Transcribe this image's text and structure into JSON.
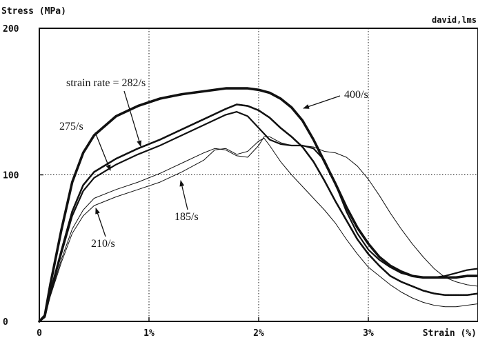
{
  "chart_data": {
    "type": "line",
    "title": "",
    "ylabel": "Stress (MPa)",
    "xlabel": "Strain (%)",
    "corner_label": "david,lms",
    "xlim": [
      0,
      4
    ],
    "ylim": [
      0,
      200
    ],
    "x_ticks": [
      {
        "value": 0,
        "label": "0"
      },
      {
        "value": 1,
        "label": "1%"
      },
      {
        "value": 2,
        "label": "2%"
      },
      {
        "value": 3,
        "label": "3%"
      }
    ],
    "y_ticks": [
      {
        "value": 0,
        "label": "0"
      },
      {
        "value": 100,
        "label": "100"
      },
      {
        "value": 200,
        "label": "200"
      }
    ],
    "reference_line_y": 100,
    "series": [
      {
        "name": "400/s",
        "x": [
          0,
          0.05,
          0.1,
          0.2,
          0.3,
          0.4,
          0.5,
          0.7,
          0.9,
          1.1,
          1.3,
          1.5,
          1.7,
          1.8,
          1.9,
          2.0,
          2.1,
          2.2,
          2.3,
          2.4,
          2.5,
          2.6,
          2.7,
          2.8,
          2.9,
          3.0,
          3.1,
          3.2,
          3.3,
          3.4,
          3.5,
          3.6,
          3.7,
          3.8,
          3.9,
          4.0
        ],
        "y": [
          0,
          4,
          25,
          62,
          95,
          115,
          127,
          140,
          147,
          152,
          155,
          157,
          159,
          159,
          159,
          158,
          156,
          152,
          146,
          137,
          124,
          109,
          94,
          78,
          64,
          53,
          44,
          38,
          34,
          31,
          30,
          30,
          30,
          30,
          31,
          31
        ]
      },
      {
        "name": "282/s",
        "x": [
          0,
          0.05,
          0.1,
          0.2,
          0.3,
          0.4,
          0.5,
          0.7,
          0.9,
          1.1,
          1.3,
          1.5,
          1.7,
          1.8,
          1.9,
          2.0,
          2.1,
          2.2,
          2.3,
          2.4,
          2.5,
          2.6,
          2.7,
          2.8,
          2.9,
          3.0,
          3.1,
          3.2,
          3.3,
          3.4,
          3.5,
          3.6,
          3.7,
          3.8,
          3.9,
          4.0
        ],
        "y": [
          0,
          3,
          20,
          48,
          75,
          93,
          102,
          111,
          118,
          124,
          131,
          138,
          145,
          148,
          147,
          144,
          139,
          132,
          126,
          119,
          109,
          96,
          82,
          69,
          56,
          46,
          38,
          31,
          27,
          24,
          21,
          19,
          18,
          18,
          18,
          19
        ]
      },
      {
        "name": "275/s",
        "x": [
          0,
          0.05,
          0.1,
          0.2,
          0.3,
          0.4,
          0.5,
          0.7,
          0.9,
          1.1,
          1.3,
          1.5,
          1.7,
          1.8,
          1.9,
          2.0,
          2.1,
          2.2,
          2.3,
          2.4,
          2.5,
          2.6,
          2.7,
          2.8,
          2.9,
          3.0,
          3.1,
          3.2,
          3.3,
          3.4,
          3.5,
          3.6,
          3.7,
          3.8,
          3.9,
          4.0
        ],
        "y": [
          0,
          3,
          19,
          46,
          72,
          89,
          98,
          107,
          114,
          120,
          127,
          134,
          141,
          143,
          140,
          132,
          124,
          121,
          120,
          120,
          118,
          110,
          94,
          75,
          60,
          49,
          42,
          37,
          33,
          31,
          30,
          30,
          31,
          33,
          35,
          36
        ]
      },
      {
        "name": "210/s",
        "x": [
          0,
          0.05,
          0.1,
          0.2,
          0.3,
          0.4,
          0.5,
          0.7,
          0.9,
          1.1,
          1.3,
          1.5,
          1.6,
          1.7,
          1.8,
          1.9,
          2.0,
          2.05,
          2.1,
          2.2,
          2.3,
          2.4,
          2.5,
          2.6,
          2.7,
          2.8,
          2.9,
          3.0,
          3.1,
          3.2,
          3.3,
          3.4,
          3.5,
          3.6,
          3.7,
          3.8,
          3.9,
          4.0
        ],
        "y": [
          0,
          3,
          17,
          40,
          60,
          72,
          79,
          85,
          90,
          95,
          102,
          110,
          117,
          118,
          114,
          116,
          123,
          125,
          120,
          109,
          100,
          92,
          84,
          76,
          67,
          56,
          46,
          37,
          31,
          25,
          20,
          16,
          13,
          11,
          10,
          10,
          11,
          12
        ]
      },
      {
        "name": "185/s",
        "x": [
          0,
          0.05,
          0.1,
          0.2,
          0.3,
          0.4,
          0.5,
          0.7,
          0.9,
          1.1,
          1.3,
          1.5,
          1.6,
          1.7,
          1.8,
          1.9,
          2.0,
          2.05,
          2.1,
          2.2,
          2.3,
          2.4,
          2.5,
          2.6,
          2.7,
          2.8,
          2.9,
          3.0,
          3.1,
          3.2,
          3.3,
          3.4,
          3.5,
          3.6,
          3.7,
          3.8,
          3.9,
          4.0
        ],
        "y": [
          0,
          3,
          18,
          42,
          63,
          76,
          84,
          90,
          95,
          101,
          108,
          115,
          118,
          117,
          113,
          112,
          120,
          126,
          126,
          122,
          120,
          120,
          119,
          116,
          115,
          112,
          106,
          97,
          86,
          74,
          63,
          53,
          44,
          36,
          30,
          27,
          25,
          24
        ]
      }
    ],
    "annotations": [
      {
        "text": "strain rate = 282/s",
        "series": "282/s"
      },
      {
        "text": "400/s",
        "series": "400/s"
      },
      {
        "text": "275/s",
        "series": "275/s"
      },
      {
        "text": "185/s",
        "series": "185/s"
      },
      {
        "text": "210/s",
        "series": "210/s"
      }
    ],
    "grid": false
  }
}
